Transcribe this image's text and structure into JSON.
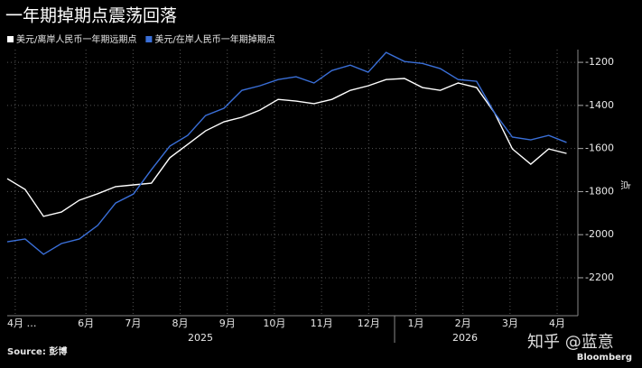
{
  "chart_data": {
    "type": "line",
    "title": "一年期掉期点震荡回落",
    "y_axis_label": "点",
    "source": "Source: 彭博",
    "brand": "Bloomberg",
    "watermark": "知乎 @蓝意",
    "year_labels": [
      "2025",
      "2026"
    ],
    "x": [
      4.33,
      4.71,
      5.1,
      5.48,
      5.86,
      6.25,
      6.63,
      7.01,
      7.39,
      7.78,
      8.16,
      8.54,
      8.93,
      9.31,
      9.69,
      10.08,
      10.46,
      10.84,
      11.22,
      11.61,
      11.99,
      12.37,
      12.76,
      13.14,
      13.52,
      13.9,
      14.29,
      14.67,
      15.05,
      15.44,
      15.82,
      16.2
    ],
    "series": [
      {
        "name": "美元/离岸人民币一年期远期点",
        "color": "#ffffff",
        "values": [
          -1740,
          -1790,
          -1915,
          -1895,
          -1840,
          -1810,
          -1777,
          -1769,
          -1761,
          -1643,
          -1581,
          -1518,
          -1476,
          -1455,
          -1422,
          -1372,
          -1380,
          -1392,
          -1372,
          -1330,
          -1309,
          -1280,
          -1275,
          -1317,
          -1330,
          -1296,
          -1317,
          -1434,
          -1602,
          -1673,
          -1602,
          -1623
        ]
      },
      {
        "name": "美元/在岸人民币一年期掉期点",
        "color": "#3a6fd8",
        "values": [
          -2033,
          -2020,
          -2091,
          -2041,
          -2020,
          -1957,
          -1853,
          -1811,
          -1698,
          -1589,
          -1539,
          -1447,
          -1413,
          -1330,
          -1309,
          -1280,
          -1267,
          -1296,
          -1238,
          -1213,
          -1246,
          -1154,
          -1196,
          -1205,
          -1229,
          -1280,
          -1288,
          -1434,
          -1547,
          -1560,
          -1539,
          -1572
        ]
      }
    ],
    "xlim": [
      4.33,
      16.44
    ],
    "xticks": [
      {
        "value": 4.5,
        "label": "4月 …"
      },
      {
        "value": 6,
        "label": "6月"
      },
      {
        "value": 7,
        "label": "7月"
      },
      {
        "value": 8,
        "label": "8月"
      },
      {
        "value": 9,
        "label": "9月"
      },
      {
        "value": 10,
        "label": "10月"
      },
      {
        "value": 11,
        "label": "11月"
      },
      {
        "value": 12,
        "label": "12月"
      },
      {
        "value": 13,
        "label": "1月"
      },
      {
        "value": 14,
        "label": "2月"
      },
      {
        "value": 15,
        "label": "3月"
      },
      {
        "value": 16,
        "label": "4月"
      }
    ],
    "ylim": [
      -2376,
      -1141
    ],
    "yticks": [
      -1200,
      -1400,
      -1600,
      -1800,
      -2000,
      -2200
    ],
    "grid": true
  }
}
